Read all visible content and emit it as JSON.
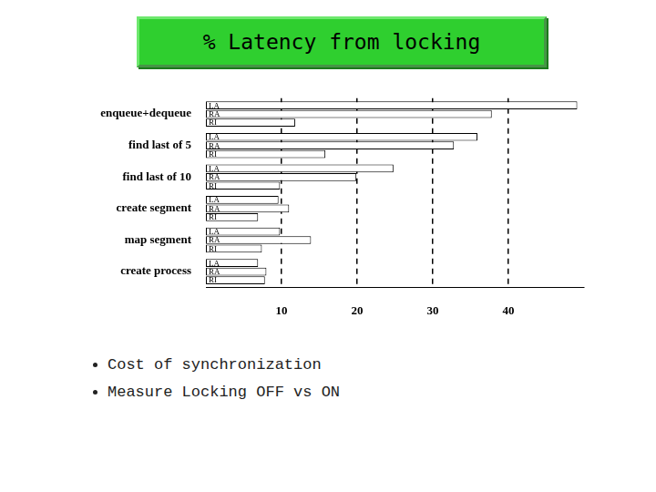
{
  "chart_data": {
    "type": "bar",
    "title": "% Latency from locking",
    "orientation": "horizontal",
    "categories": [
      "enqueue+dequeue",
      "find last of 5",
      "find last of 10",
      "create segment",
      "map segment",
      "create process"
    ],
    "series": [
      {
        "name": "LA",
        "color": "#ffffff",
        "values": [
          49.1,
          35.9,
          24.8,
          9.6,
          9.8,
          6.9
        ]
      },
      {
        "name": "RA",
        "color": "#ffffff",
        "values": [
          37.8,
          32.8,
          19.9,
          11.0,
          13.9,
          8.0
        ]
      },
      {
        "name": "RI",
        "color": "#ffffff",
        "values": [
          11.8,
          15.8,
          9.8,
          6.9,
          7.4,
          7.8
        ]
      }
    ],
    "xlim": [
      0,
      50
    ],
    "xticks": [
      10,
      20,
      30,
      40
    ],
    "grid": true
  },
  "bullets": [
    "Cost of synchronization",
    "Measure Locking OFF vs  ON"
  ]
}
